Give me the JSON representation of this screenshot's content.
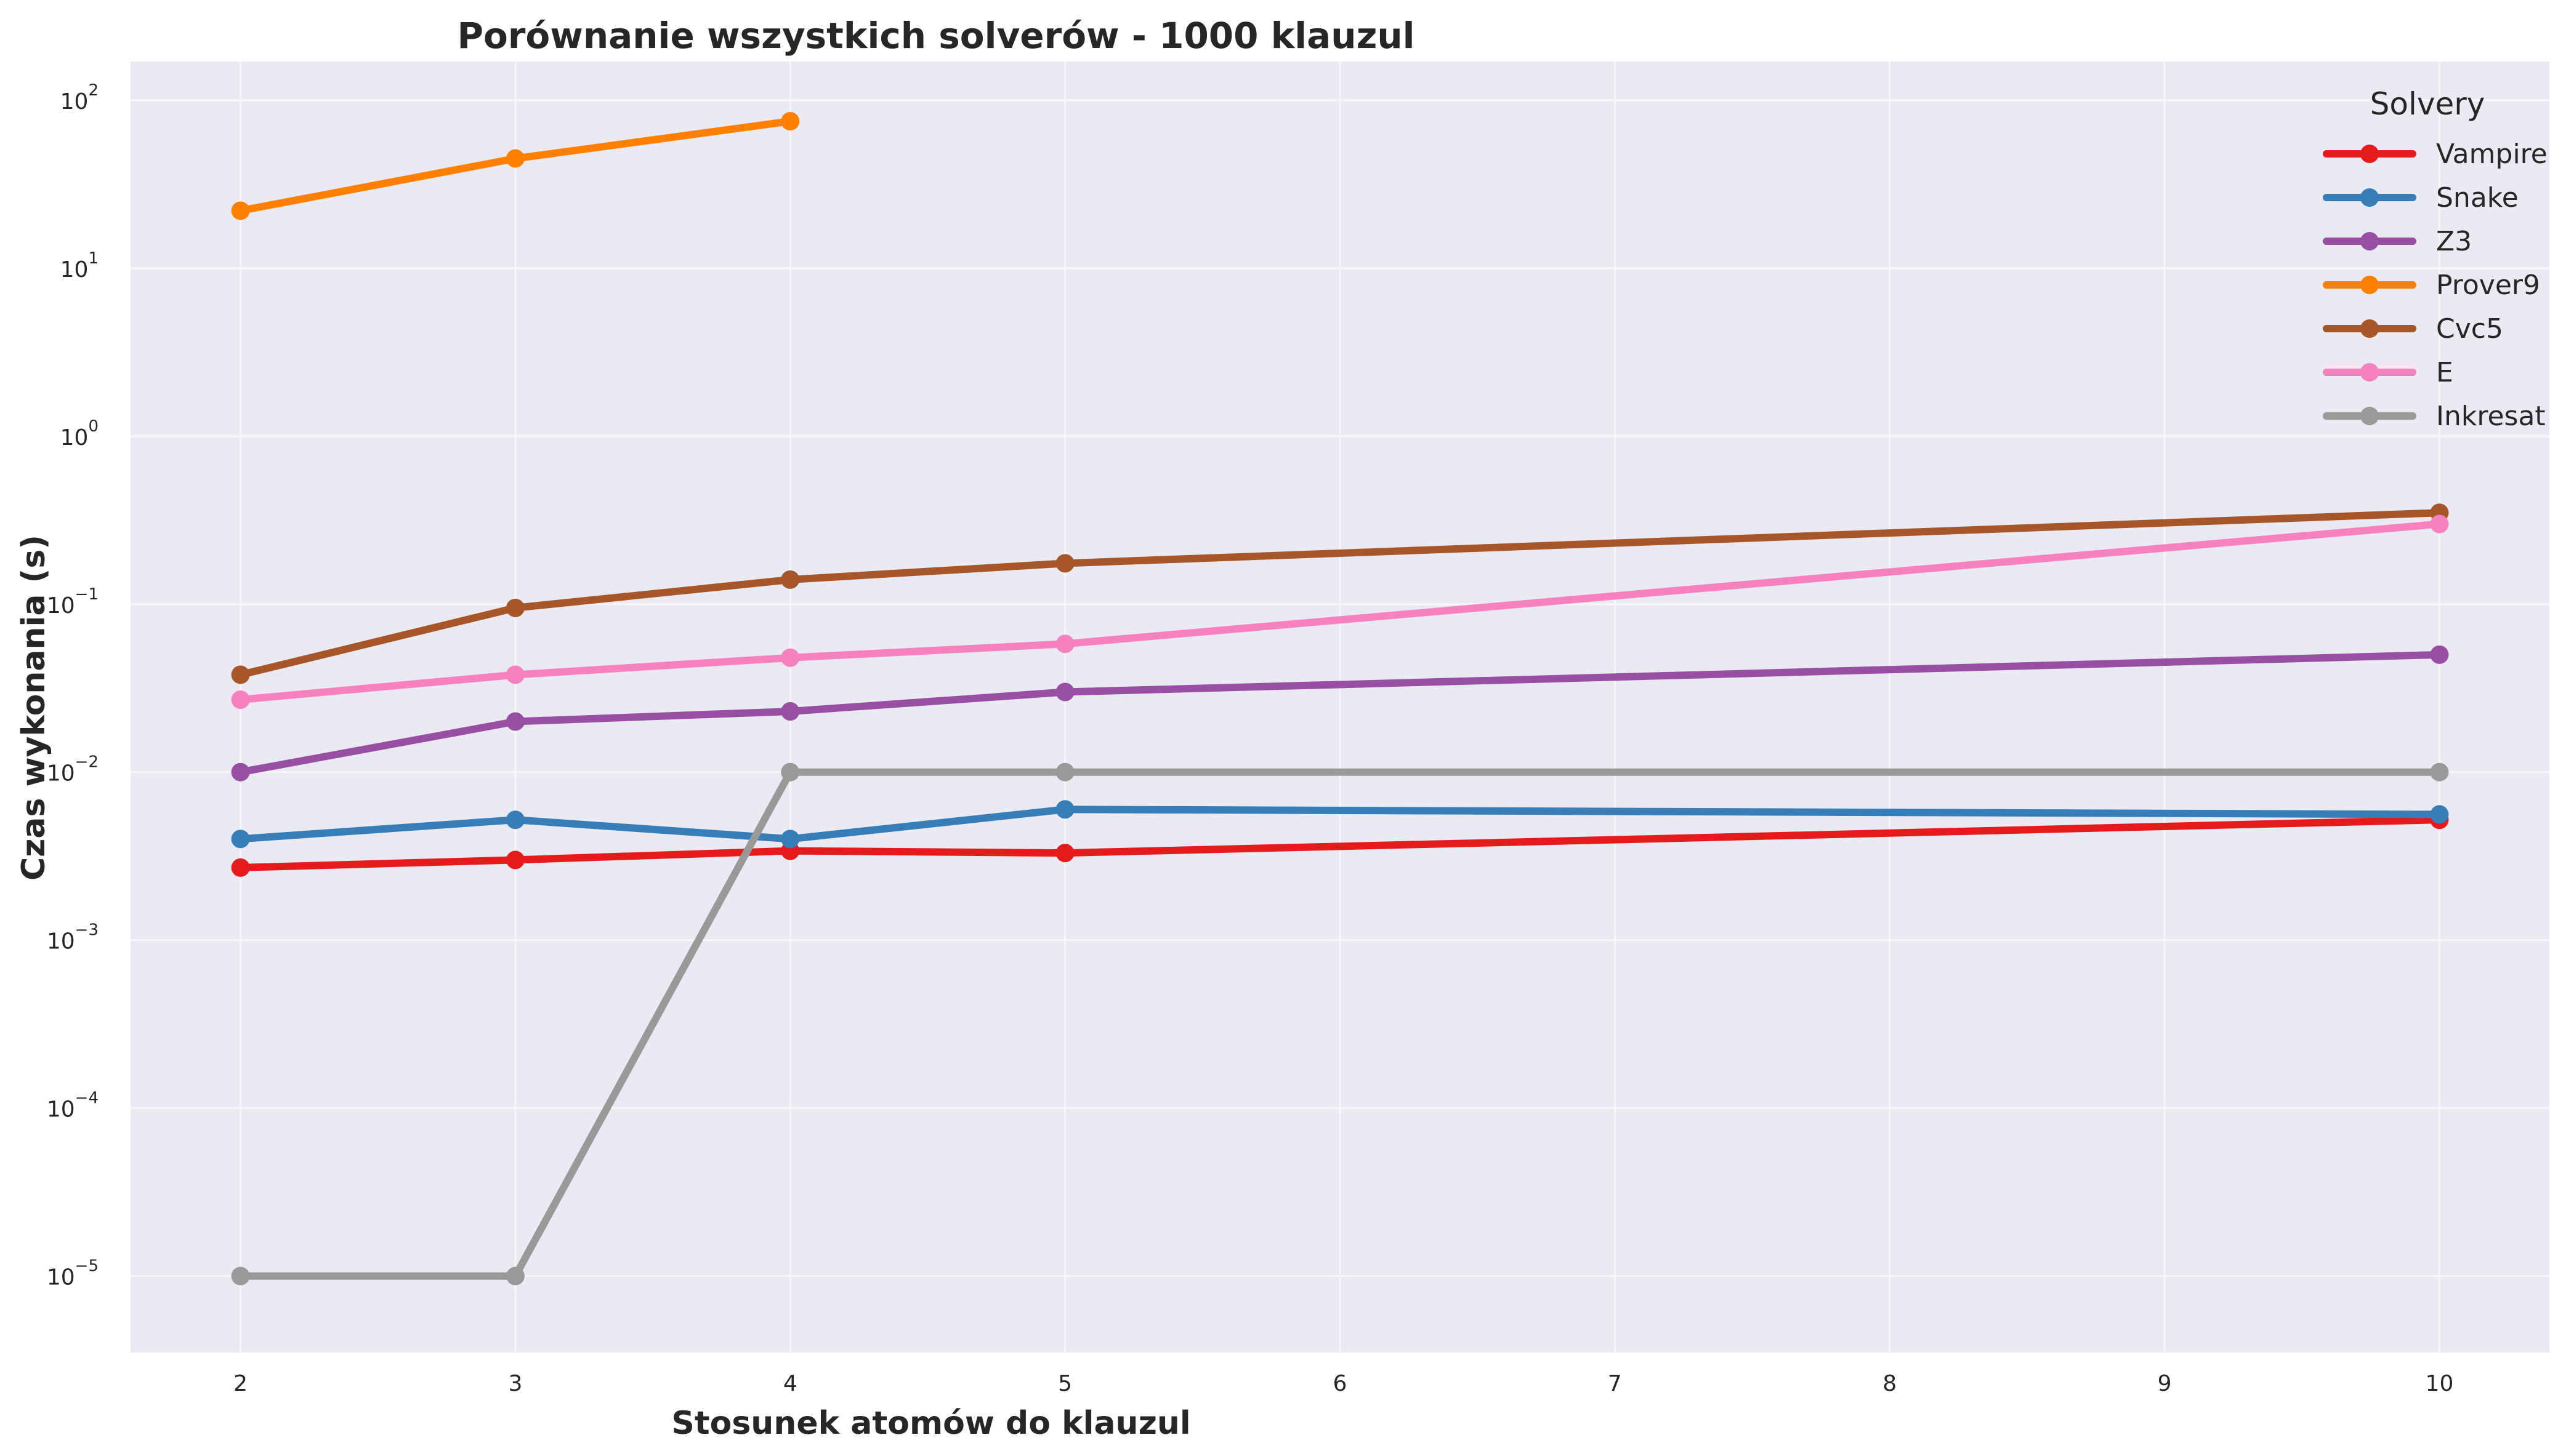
{
  "chart_data": {
    "type": "line",
    "title": "Porównanie wszystkich solverów - 1000 klauzul",
    "xlabel": "Stosunek atomów do klauzul",
    "ylabel": "Czas wykonania (s)",
    "x_ticks": [
      2,
      3,
      4,
      5,
      6,
      7,
      8,
      9,
      10
    ],
    "xlim": [
      1.6,
      10.4
    ],
    "y_scale": "log",
    "ylim": [
      3.5e-06,
      170
    ],
    "y_ticks": [
      {
        "value": 1e-05,
        "base": "10",
        "exp": "−5"
      },
      {
        "value": 0.0001,
        "base": "10",
        "exp": "−4"
      },
      {
        "value": 0.001,
        "base": "10",
        "exp": "−3"
      },
      {
        "value": 0.01,
        "base": "10",
        "exp": "−2"
      },
      {
        "value": 0.1,
        "base": "10",
        "exp": "−1"
      },
      {
        "value": 1,
        "base": "10",
        "exp": "0"
      },
      {
        "value": 10,
        "base": "10",
        "exp": "1"
      },
      {
        "value": 100,
        "base": "10",
        "exp": "2"
      }
    ],
    "grid": true,
    "legend": {
      "title": "Solvery",
      "placement": "top-right"
    },
    "series": [
      {
        "name": "Vampire",
        "color": "#e41a1c",
        "x": [
          2,
          3,
          4,
          5,
          10
        ],
        "y": [
          0.0027,
          0.003,
          0.0034,
          0.0033,
          0.0052
        ]
      },
      {
        "name": "Snake",
        "color": "#377eb8",
        "x": [
          2,
          3,
          4,
          5,
          10
        ],
        "y": [
          0.004,
          0.0052,
          0.004,
          0.006,
          0.0056
        ]
      },
      {
        "name": "Z3",
        "color": "#984ea3",
        "x": [
          2,
          3,
          4,
          5,
          10
        ],
        "y": [
          0.01,
          0.02,
          0.023,
          0.03,
          0.05
        ]
      },
      {
        "name": "Prover9",
        "color": "#ff7f00",
        "x": [
          2,
          3,
          4
        ],
        "y": [
          22,
          45,
          75
        ]
      },
      {
        "name": "Cvc5",
        "color": "#a65628",
        "x": [
          2,
          3,
          4,
          5,
          10
        ],
        "y": [
          0.038,
          0.095,
          0.14,
          0.175,
          0.35
        ]
      },
      {
        "name": "E",
        "color": "#f781bf",
        "x": [
          2,
          3,
          4,
          5,
          10
        ],
        "y": [
          0.027,
          0.038,
          0.048,
          0.058,
          0.3
        ]
      },
      {
        "name": "Inkresat",
        "color": "#999999",
        "x": [
          2,
          3,
          4,
          5,
          10
        ],
        "y": [
          1e-05,
          1e-05,
          0.01,
          0.01,
          0.01
        ]
      }
    ]
  }
}
